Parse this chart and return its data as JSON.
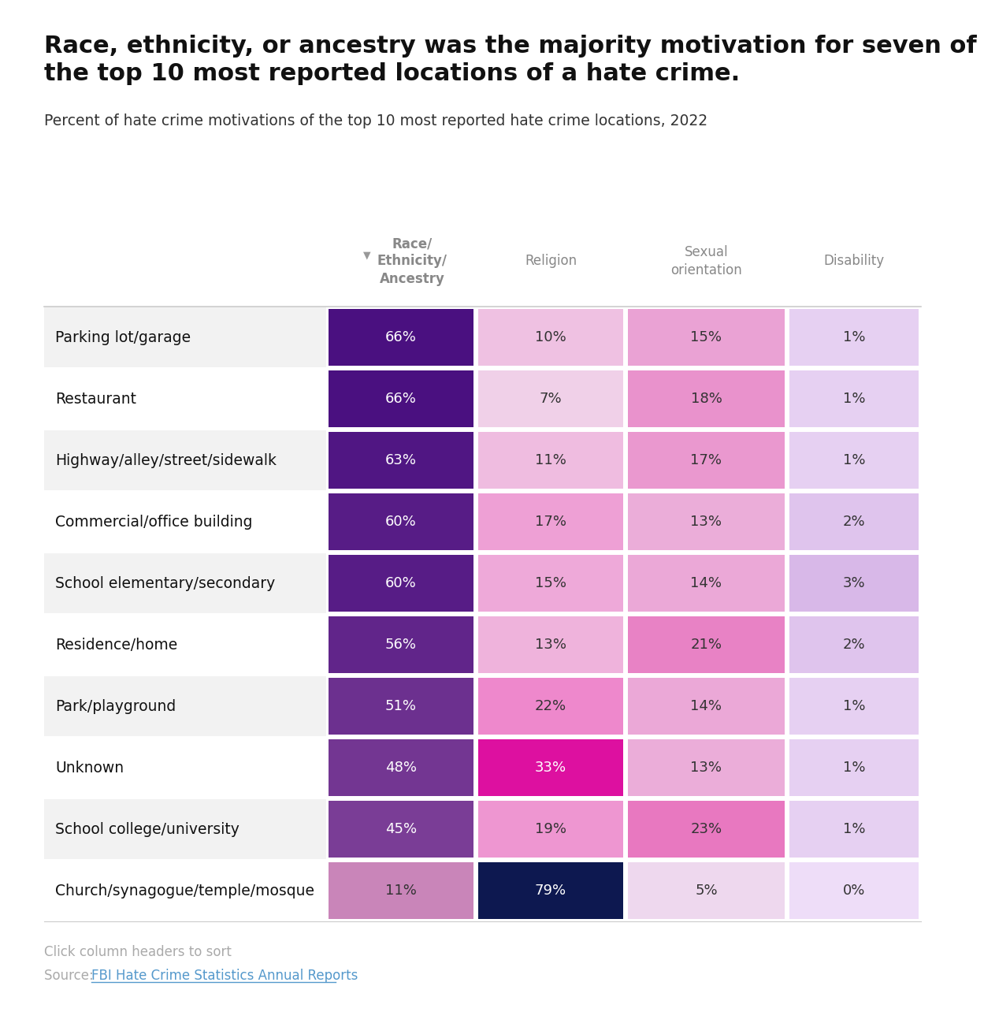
{
  "title_bold": "Race, ethnicity, or ancestry was the majority motivation for seven of\nthe top 10 most reported locations of a hate crime.",
  "subtitle": "Percent of hate crime motivations of the top 10 most reported hate crime locations, 2022",
  "col_headers": [
    "Race/\nEthnicity/\nAncestry",
    "Religion",
    "Sexual\norientation",
    "Disability"
  ],
  "rows": [
    "Parking lot/garage",
    "Restaurant",
    "Highway/alley/street/sidewalk",
    "Commercial/office building",
    "School elementary/secondary",
    "Residence/home",
    "Park/playground",
    "Unknown",
    "School college/university",
    "Church/synagogue/temple/mosque"
  ],
  "data": [
    [
      66,
      10,
      15,
      1
    ],
    [
      66,
      7,
      18,
      1
    ],
    [
      63,
      11,
      17,
      1
    ],
    [
      60,
      17,
      13,
      2
    ],
    [
      60,
      15,
      14,
      3
    ],
    [
      56,
      13,
      21,
      2
    ],
    [
      51,
      22,
      14,
      1
    ],
    [
      48,
      33,
      13,
      1
    ],
    [
      45,
      19,
      23,
      1
    ],
    [
      11,
      79,
      5,
      0
    ]
  ],
  "footnote1": "Click column headers to sort",
  "footnote2": "Source: ",
  "footnote2_link": "FBI Hate Crime Statistics Annual Reports",
  "background_color": "#ffffff",
  "row_alt_color": "#f2f2f2",
  "col_header_color": "#888888"
}
